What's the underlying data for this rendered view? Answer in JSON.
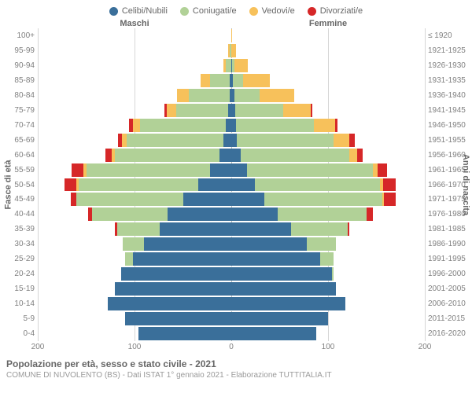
{
  "legend": [
    {
      "label": "Celibi/Nubili",
      "color": "#3a6f9a"
    },
    {
      "label": "Coniugati/e",
      "color": "#b1d197"
    },
    {
      "label": "Vedovi/e",
      "color": "#f7c15b"
    },
    {
      "label": "Divorziati/e",
      "color": "#d62728"
    }
  ],
  "headers": {
    "male": "Maschi",
    "female": "Femmine"
  },
  "axis_titles": {
    "left": "Fasce di età",
    "right": "Anni di nascita"
  },
  "x_max": 200,
  "x_ticks": [
    200,
    100,
    0,
    100,
    200
  ],
  "grid": {
    "major_color": "#d6d6d6",
    "zero_color": "#bcbcbc",
    "zero_dash": "dashed"
  },
  "colors": {
    "single": "#3a6f9a",
    "married": "#b1d197",
    "widowed": "#f7c15b",
    "divorced": "#d62728"
  },
  "age_bands": [
    "100+",
    "95-99",
    "90-94",
    "85-89",
    "80-84",
    "75-79",
    "70-74",
    "65-69",
    "60-64",
    "55-59",
    "50-54",
    "45-49",
    "40-44",
    "35-39",
    "30-34",
    "25-29",
    "20-24",
    "15-19",
    "10-14",
    "5-9",
    "0-4"
  ],
  "birth_years": [
    "≤ 1920",
    "1921-1925",
    "1926-1930",
    "1931-1935",
    "1936-1940",
    "1941-1945",
    "1946-1950",
    "1951-1955",
    "1956-1960",
    "1961-1965",
    "1966-1970",
    "1971-1975",
    "1976-1980",
    "1981-1985",
    "1986-1990",
    "1991-1995",
    "1996-2000",
    "2001-2005",
    "2006-2010",
    "2011-2015",
    "2016-2020"
  ],
  "male": [
    {
      "single": 0,
      "married": 0,
      "widowed": 0,
      "divorced": 0
    },
    {
      "single": 0,
      "married": 2,
      "widowed": 1,
      "divorced": 0
    },
    {
      "single": 0,
      "married": 6,
      "widowed": 2,
      "divorced": 0
    },
    {
      "single": 2,
      "married": 20,
      "widowed": 10,
      "divorced": 0
    },
    {
      "single": 2,
      "married": 42,
      "widowed": 12,
      "divorced": 0
    },
    {
      "single": 3,
      "married": 54,
      "widowed": 10,
      "divorced": 2
    },
    {
      "single": 6,
      "married": 88,
      "widowed": 8,
      "divorced": 4
    },
    {
      "single": 8,
      "married": 100,
      "widowed": 5,
      "divorced": 4
    },
    {
      "single": 12,
      "married": 108,
      "widowed": 4,
      "divorced": 6
    },
    {
      "single": 22,
      "married": 128,
      "widowed": 3,
      "divorced": 12
    },
    {
      "single": 34,
      "married": 124,
      "widowed": 2,
      "divorced": 12
    },
    {
      "single": 50,
      "married": 110,
      "widowed": 0,
      "divorced": 6
    },
    {
      "single": 66,
      "married": 78,
      "widowed": 0,
      "divorced": 4
    },
    {
      "single": 74,
      "married": 44,
      "widowed": 0,
      "divorced": 2
    },
    {
      "single": 90,
      "married": 22,
      "widowed": 0,
      "divorced": 0
    },
    {
      "single": 102,
      "married": 8,
      "widowed": 0,
      "divorced": 0
    },
    {
      "single": 114,
      "married": 0,
      "widowed": 0,
      "divorced": 0
    },
    {
      "single": 120,
      "married": 0,
      "widowed": 0,
      "divorced": 0
    },
    {
      "single": 128,
      "married": 0,
      "widowed": 0,
      "divorced": 0
    },
    {
      "single": 110,
      "married": 0,
      "widowed": 0,
      "divorced": 0
    },
    {
      "single": 96,
      "married": 0,
      "widowed": 0,
      "divorced": 0
    }
  ],
  "female": [
    {
      "single": 0,
      "married": 0,
      "widowed": 1,
      "divorced": 0
    },
    {
      "single": 0,
      "married": 0,
      "widowed": 5,
      "divorced": 0
    },
    {
      "single": 1,
      "married": 2,
      "widowed": 14,
      "divorced": 0
    },
    {
      "single": 2,
      "married": 10,
      "widowed": 28,
      "divorced": 0
    },
    {
      "single": 3,
      "married": 26,
      "widowed": 36,
      "divorced": 0
    },
    {
      "single": 4,
      "married": 50,
      "widowed": 28,
      "divorced": 2
    },
    {
      "single": 5,
      "married": 80,
      "widowed": 22,
      "divorced": 3
    },
    {
      "single": 6,
      "married": 100,
      "widowed": 16,
      "divorced": 6
    },
    {
      "single": 10,
      "married": 112,
      "widowed": 8,
      "divorced": 6
    },
    {
      "single": 16,
      "married": 130,
      "widowed": 5,
      "divorced": 10
    },
    {
      "single": 24,
      "married": 130,
      "widowed": 3,
      "divorced": 13
    },
    {
      "single": 34,
      "married": 122,
      "widowed": 2,
      "divorced": 12
    },
    {
      "single": 48,
      "married": 92,
      "widowed": 0,
      "divorced": 6
    },
    {
      "single": 62,
      "married": 58,
      "widowed": 0,
      "divorced": 2
    },
    {
      "single": 78,
      "married": 30,
      "widowed": 0,
      "divorced": 0
    },
    {
      "single": 92,
      "married": 14,
      "widowed": 0,
      "divorced": 0
    },
    {
      "single": 104,
      "married": 2,
      "widowed": 0,
      "divorced": 0
    },
    {
      "single": 108,
      "married": 0,
      "widowed": 0,
      "divorced": 0
    },
    {
      "single": 118,
      "married": 0,
      "widowed": 0,
      "divorced": 0
    },
    {
      "single": 100,
      "married": 0,
      "widowed": 0,
      "divorced": 0
    },
    {
      "single": 88,
      "married": 0,
      "widowed": 0,
      "divorced": 0
    }
  ],
  "footer": {
    "title": "Popolazione per età, sesso e stato civile - 2021",
    "subtitle": "COMUNE DI NUVOLENTO (BS) - Dati ISTAT 1° gennaio 2021 - Elaborazione TUTTITALIA.IT"
  }
}
